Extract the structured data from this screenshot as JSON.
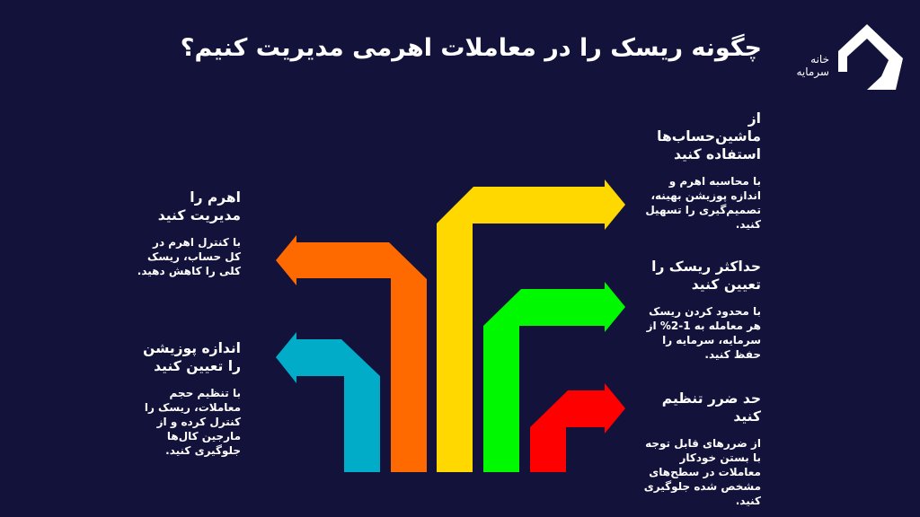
{
  "title": "چگونه ریسک را در معاملات اهرمی مدیریت کنیم؟",
  "logo": {
    "text_line1": "خانه",
    "text_line2": "سرمایه"
  },
  "colors": {
    "background": "#13123a",
    "blue": "#00acc8",
    "orange": "#ff6a00",
    "yellow": "#ffd800",
    "green": "#00f800",
    "red": "#ff0000"
  },
  "steps": [
    {
      "color": "blue",
      "direction": "left",
      "heading": "اندازه پوزیشن را تعیین کنید",
      "body": "با تنظیم حجم معاملات، ریسک را کنترل کرده و از مارجین کال‌ها جلوگیری کنید."
    },
    {
      "color": "orange",
      "direction": "left",
      "heading": "اهرم را مدیریت کنید",
      "body": "با کنترل اهرم در کل حساب، ریسک کلی را کاهش دهید."
    },
    {
      "color": "yellow",
      "direction": "right",
      "heading": "از ماشین‌حساب‌ها استفاده کنید",
      "body": "با محاسبه اهرم و اندازه پوزیشن بهینه، تصمیم‌گیری را تسهیل کنید."
    },
    {
      "color": "green",
      "direction": "right",
      "heading": "حداکثر ریسک را تعیین کنید",
      "body": "با محدود کردن ریسک هر معامله به 1-2% از سرمایه، سرمایه را حفظ کنید."
    },
    {
      "color": "red",
      "direction": "right",
      "heading": "حد ضرر تنظیم کنید",
      "body": "از ضررهای قابل توجه با بستن خودکار معاملات در سطح‌های مشخص شده جلوگیری کنید."
    }
  ]
}
